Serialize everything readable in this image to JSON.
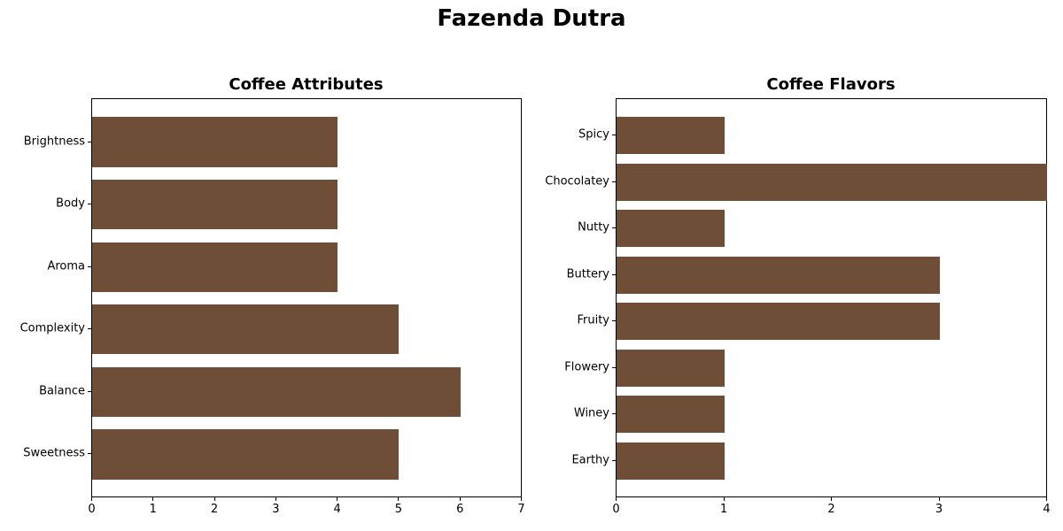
{
  "suptitle": "Fazenda Dutra",
  "colors": {
    "bar": "#6f4e37",
    "axis": "#000000",
    "background": "#ffffff"
  },
  "chart_data": [
    {
      "type": "bar",
      "orientation": "horizontal",
      "title": "Coffee Attributes",
      "categories": [
        "Brightness",
        "Body",
        "Aroma",
        "Complexity",
        "Balance",
        "Sweetness"
      ],
      "values": [
        4,
        4,
        4,
        5,
        6,
        5
      ],
      "xlabel": "",
      "ylabel": "",
      "xlim": [
        0,
        7
      ],
      "xticks": [
        "0",
        "1",
        "2",
        "3",
        "4",
        "5",
        "6",
        "7"
      ],
      "grid": false
    },
    {
      "type": "bar",
      "orientation": "horizontal",
      "title": "Coffee Flavors",
      "categories": [
        "Spicy",
        "Chocolatey",
        "Nutty",
        "Buttery",
        "Fruity",
        "Flowery",
        "Winey",
        "Earthy"
      ],
      "values": [
        1,
        4,
        1,
        3,
        3,
        1,
        1,
        1
      ],
      "xlabel": "",
      "ylabel": "",
      "xlim": [
        0,
        4
      ],
      "xticks": [
        "0",
        "1",
        "2",
        "3",
        "4"
      ],
      "grid": false
    }
  ]
}
